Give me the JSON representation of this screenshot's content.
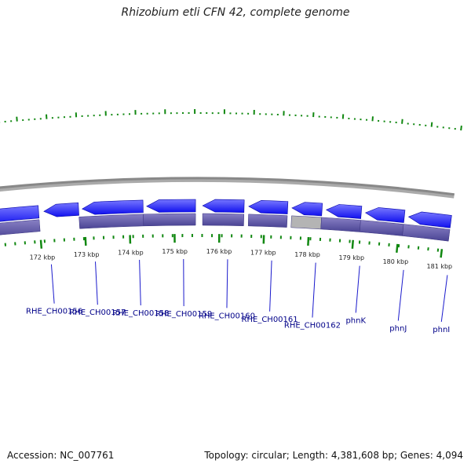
{
  "title": "Rhizobium etli CFN 42, complete genome",
  "footer": {
    "accession": "Accession: NC_007761",
    "summary": "Topology: circular; Length: 4,381,608 bp; Genes: 4,094"
  },
  "scale": {
    "unit": "kbp",
    "labels": [
      "172 kbp",
      "173 kbp",
      "174 kbp",
      "175 kbp",
      "176 kbp",
      "177 kbp",
      "178 kbp",
      "179 kbp",
      "180 kbp",
      "181 kbp"
    ]
  },
  "genes": [
    "RHE_CH00156",
    "RHE_CH00157",
    "RHE_CH00158",
    "RHE_CH00159",
    "RHE_CH00160",
    "RHE_CH00161",
    "RHE_CH00162",
    "phnK",
    "phnJ",
    "phnI"
  ],
  "colors": {
    "gene": "#1010ee",
    "gene_light": "#7777ff",
    "cds": "#4a4494",
    "cds_light": "#8880c4",
    "pseudo": "#b4b4b4",
    "backbone": "#888888",
    "ticks": "#118811",
    "label": "#000088",
    "leader": "#1a1acc"
  }
}
